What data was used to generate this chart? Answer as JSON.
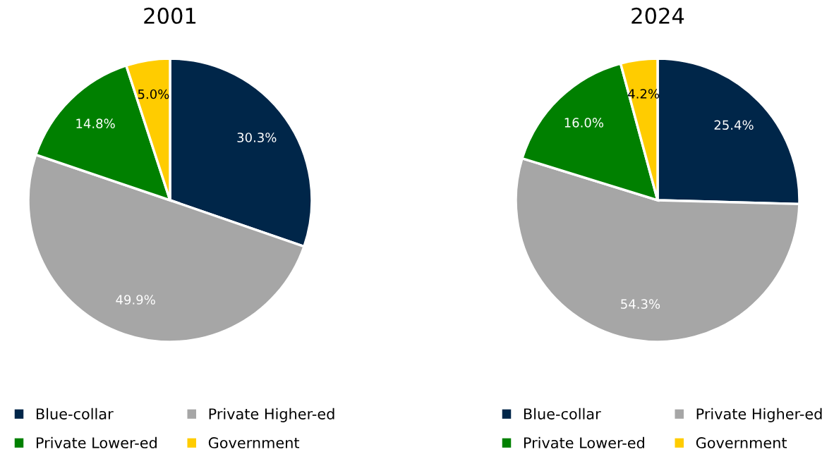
{
  "chart_data": [
    {
      "type": "pie",
      "title": "2001",
      "categories": [
        "Blue-collar",
        "Private Higher-ed",
        "Private Lower-ed",
        "Government"
      ],
      "values": [
        30.3,
        49.9,
        14.8,
        5.0
      ],
      "colors": [
        "#002649",
        "#a6a6a6",
        "#008000",
        "#ffcc00"
      ],
      "value_labels": [
        "30.3%",
        "49.9%",
        "14.8%",
        "5.0%"
      ],
      "legend": "bottom"
    },
    {
      "type": "pie",
      "title": "2024",
      "categories": [
        "Blue-collar",
        "Private Higher-ed",
        "Private Lower-ed",
        "Government"
      ],
      "values": [
        25.4,
        54.3,
        16.0,
        4.2
      ],
      "colors": [
        "#002649",
        "#a6a6a6",
        "#008000",
        "#ffcc00"
      ],
      "value_labels": [
        "25.4%",
        "54.3%",
        "16.0%",
        "4.2%"
      ],
      "legend": "bottom"
    }
  ]
}
